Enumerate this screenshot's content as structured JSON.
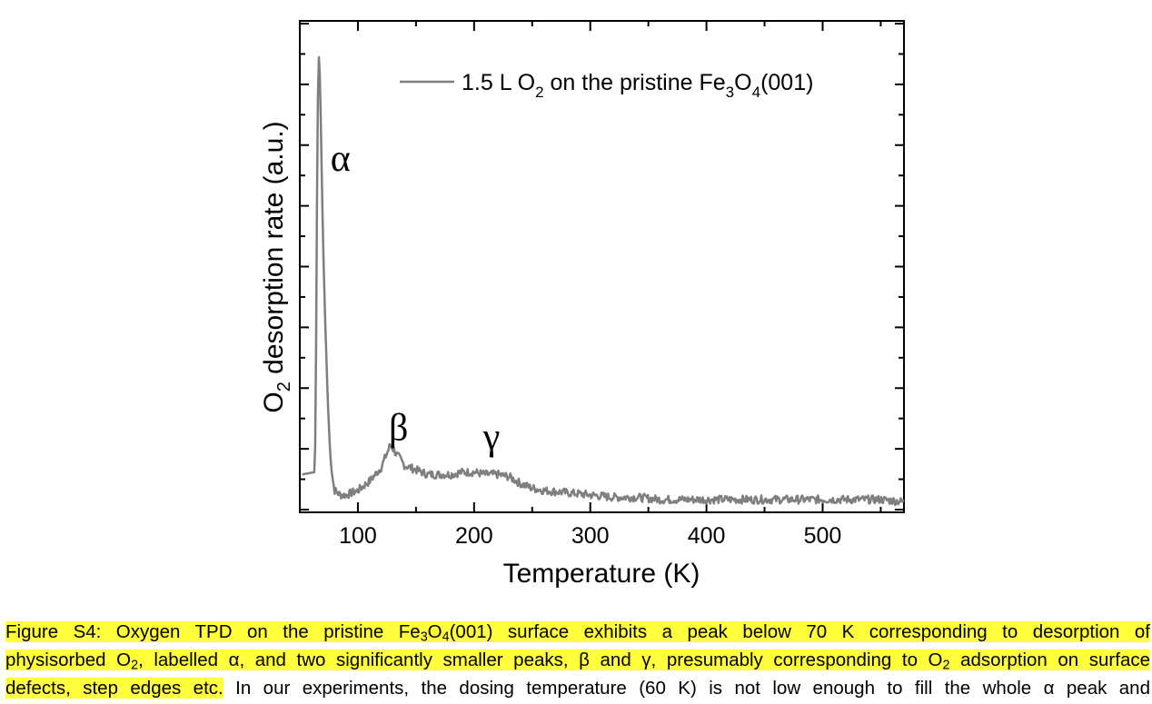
{
  "chart_data": {
    "type": "line",
    "xlabel": "Temperature (K)",
    "ylabel_main": "O",
    "ylabel_sub": "2",
    "ylabel_rest": " desorption rate (a.u.)",
    "xlim": [
      50,
      570
    ],
    "ylim": [
      0,
      1
    ],
    "x_ticks": [
      100,
      200,
      300,
      400,
      500
    ],
    "x_tick_labels": [
      "100",
      "200",
      "300",
      "400",
      "500"
    ],
    "legend": {
      "label_parts": [
        "1.5 L O",
        "2",
        " on the pristine Fe",
        "3",
        "O",
        "4",
        "(001)"
      ],
      "placement": "top-right"
    },
    "line_color": "#7f7f7f",
    "series": [
      {
        "name": "1.5 L O2 on the pristine Fe3O4(001)",
        "x": [
          52,
          63,
          64,
          65,
          66,
          67,
          68,
          69,
          70,
          72,
          74,
          76,
          78,
          80,
          85,
          90,
          95,
          100,
          110,
          120,
          128,
          133,
          136,
          140,
          150,
          160,
          170,
          180,
          190,
          200,
          210,
          220,
          230,
          240,
          250,
          260,
          280,
          300,
          320,
          340,
          360,
          380,
          400,
          450,
          500,
          550,
          570
        ],
        "y": [
          0.075,
          0.08,
          0.35,
          0.75,
          1.0,
          0.97,
          0.86,
          0.72,
          0.58,
          0.4,
          0.24,
          0.13,
          0.07,
          0.04,
          0.03,
          0.03,
          0.035,
          0.04,
          0.06,
          0.09,
          0.14,
          0.12,
          0.11,
          0.095,
          0.085,
          0.075,
          0.075,
          0.075,
          0.08,
          0.08,
          0.075,
          0.075,
          0.07,
          0.055,
          0.045,
          0.04,
          0.035,
          0.03,
          0.025,
          0.025,
          0.02,
          0.02,
          0.02,
          0.02,
          0.02,
          0.02,
          0.015
        ]
      }
    ],
    "annotations": [
      {
        "text": "α",
        "x": 85,
        "y": 0.74
      },
      {
        "text": "β",
        "x": 135,
        "y": 0.15
      },
      {
        "text": "γ",
        "x": 215,
        "y": 0.13
      }
    ]
  },
  "caption": {
    "line1": {
      "p1": "Figure S4: Oxygen TPD on the pristine Fe",
      "sub1": "3",
      "p2": "O",
      "sub2": "4",
      "p3": "(001) surface exhibits a peak below 70 K corresponding to desorption of"
    },
    "line2": {
      "p1": "physisorbed O",
      "sub1": "2",
      "p2": ", labelled α, and two significantly smaller peaks, β and γ, presumably corresponding to O",
      "sub2": "2",
      "p3": " adsorption on surface"
    },
    "line3": {
      "highlighted": "defects, step edges etc.",
      "rest": " In our experiments, the dosing temperature (60 K) is not low enough to fill the whole α peak and"
    },
    "highlight_color": "#ffff3c"
  }
}
